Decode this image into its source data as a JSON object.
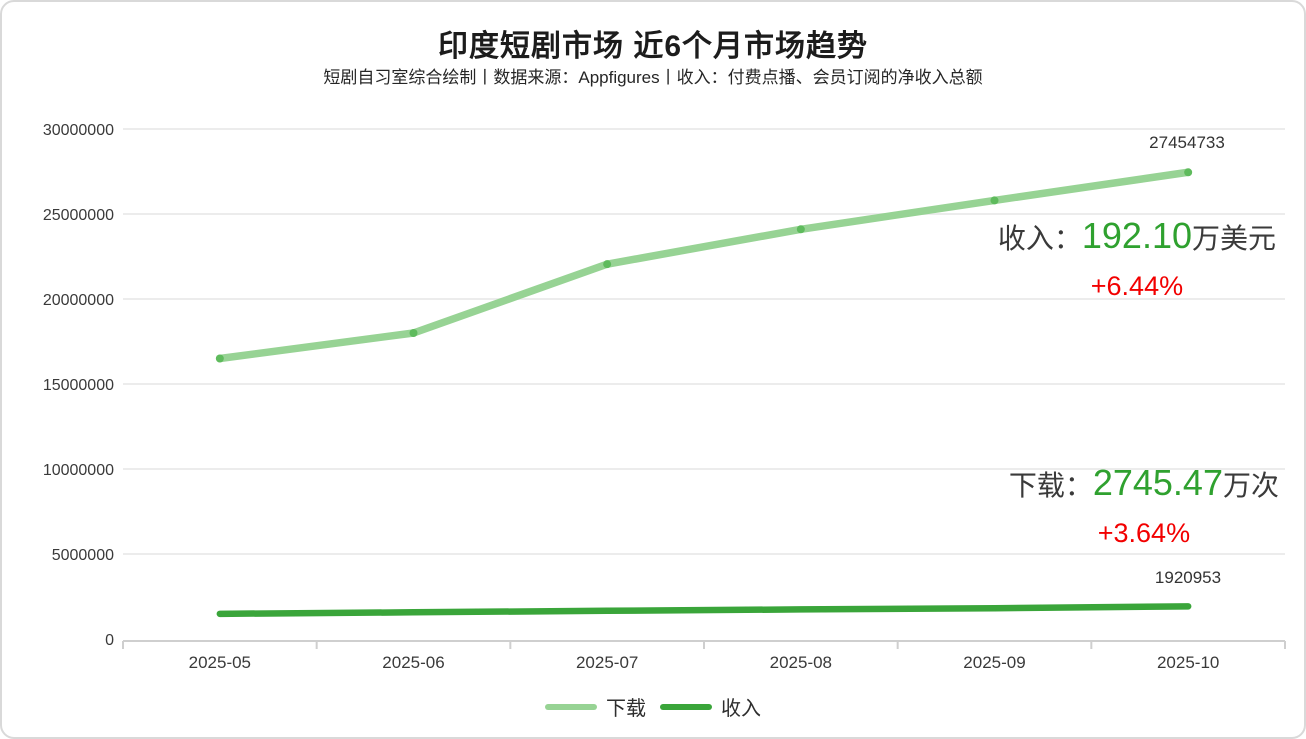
{
  "header": {
    "title": "印度短剧市场 近6个月市场趋势",
    "subtitle": "短剧自习室综合绘制丨数据来源：Appfigures丨收入：付费点播、会员订阅的净收入总额"
  },
  "annotations": {
    "downloads_end_label": "27454733",
    "revenue_end_label": "1920953",
    "revenue": {
      "label": "收入：",
      "value": "192.10",
      "unit": "万美元",
      "change": "+6.44%"
    },
    "download": {
      "label": "下载：",
      "value": "2745.47",
      "unit": "万次",
      "change": "+3.64%"
    }
  },
  "colors": {
    "downloads_line": "#97d394",
    "downloads_point": "#5fbb5d",
    "revenue_line": "#3aa53a",
    "value_green": "#2fa12f",
    "change_red": "#f20000",
    "text_dark": "#3a3a3a"
  },
  "chart_data": {
    "type": "line",
    "title": "印度短剧市场 近6个月市场趋势",
    "categories": [
      "2025-05",
      "2025-06",
      "2025-07",
      "2025-08",
      "2025-09",
      "2025-10"
    ],
    "series": [
      {
        "name": "下载",
        "color": "#97d394",
        "point_color": "#5fbb5d",
        "values": [
          16500000,
          18000000,
          22050000,
          24100000,
          25800000,
          27454733
        ],
        "end_label": "27454733"
      },
      {
        "name": "收入",
        "color": "#3aa53a",
        "point_color": "#3aa53a",
        "values": [
          1480000,
          1570000,
          1660000,
          1740000,
          1810000,
          1920953
        ],
        "end_label": "1920953"
      }
    ],
    "ylim": [
      0,
      30000000
    ],
    "yticks": [
      0,
      5000000,
      10000000,
      15000000,
      20000000,
      25000000,
      30000000
    ],
    "xlabel": "",
    "ylabel": "",
    "grid": true,
    "legend_position": "bottom"
  }
}
